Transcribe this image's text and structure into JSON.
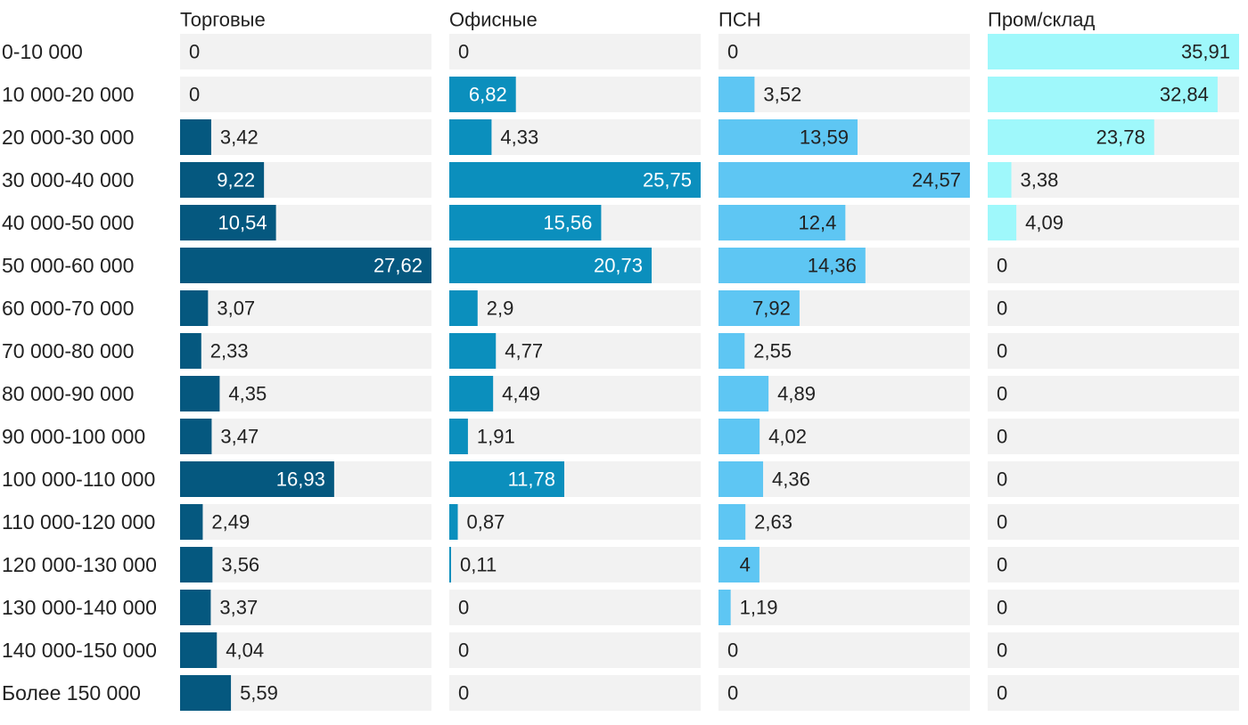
{
  "chart_data": {
    "type": "bar",
    "categories": [
      "0-10 000",
      "10 000-20 000",
      "20 000-30 000",
      "30 000-40 000",
      "40 000-50 000",
      "50 000-60 000",
      "60 000-70 000",
      "70 000-80 000",
      "80 000-90 000",
      "90 000-100 000",
      "100 000-110 000",
      "110 000-120 000",
      "120 000-130 000",
      "130 000-140 000",
      "140 000-150 000",
      "Более 150 000"
    ],
    "series": [
      {
        "name": "Торговые",
        "color": "#05587f",
        "values": [
          0,
          0,
          3.42,
          9.22,
          10.54,
          27.62,
          3.07,
          2.33,
          4.35,
          3.47,
          16.93,
          2.49,
          3.56,
          3.37,
          4.04,
          5.59
        ],
        "labels": [
          "0",
          "0",
          "3,42",
          "9,22",
          "10,54",
          "27,62",
          "3,07",
          "2,33",
          "4,35",
          "3,47",
          "16,93",
          "2,49",
          "3,56",
          "3,37",
          "4,04",
          "5,59"
        ]
      },
      {
        "name": "Офисные",
        "color": "#0b8fbd",
        "values": [
          0,
          6.82,
          4.33,
          25.75,
          15.56,
          20.73,
          2.9,
          4.77,
          4.49,
          1.91,
          11.78,
          0.87,
          0.11,
          0,
          0,
          0
        ],
        "labels": [
          "0",
          "6,82",
          "4,33",
          "25,75",
          "15,56",
          "20,73",
          "2,9",
          "4,77",
          "4,49",
          "1,91",
          "11,78",
          "0,87",
          "0,11",
          "0",
          "0",
          "0"
        ]
      },
      {
        "name": "ПСН",
        "color": "#5ec6f3",
        "values": [
          0,
          3.52,
          13.59,
          24.57,
          12.4,
          14.36,
          7.92,
          2.55,
          4.89,
          4.02,
          4.36,
          2.63,
          4,
          1.19,
          0,
          0
        ],
        "labels": [
          "0",
          "3,52",
          "13,59",
          "24,57",
          "12,4",
          "14,36",
          "7,92",
          "2,55",
          "4,89",
          "4,02",
          "4,36",
          "2,63",
          "4",
          "1,19",
          "0",
          "0"
        ]
      },
      {
        "name": "Пром/склад",
        "color": "#9ff8fb",
        "values": [
          35.91,
          32.84,
          23.78,
          3.38,
          4.09,
          0,
          0,
          0,
          0,
          0,
          0,
          0,
          0,
          0,
          0,
          0
        ],
        "labels": [
          "35,91",
          "32,84",
          "23,78",
          "3,38",
          "4,09",
          "0",
          "0",
          "0",
          "0",
          "0",
          "0",
          "0",
          "0",
          "0",
          "0",
          "0"
        ]
      }
    ],
    "track_color": "#f2f2f2"
  }
}
